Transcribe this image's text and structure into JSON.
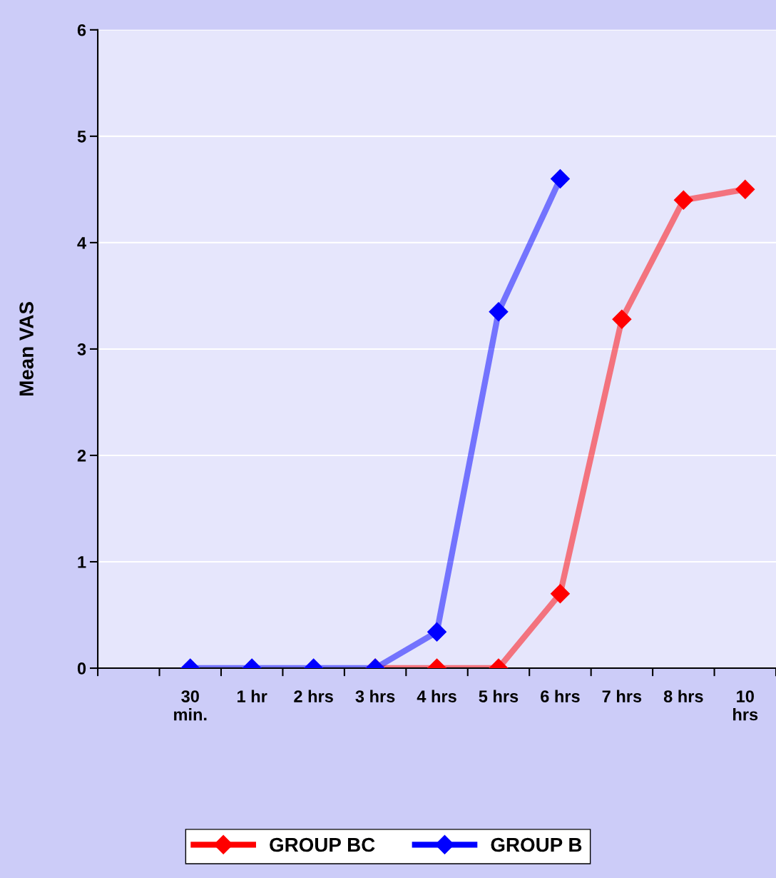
{
  "chart_data": {
    "type": "line",
    "ylabel": "Mean VAS",
    "categories": [
      null,
      "30\nmin.",
      "1 hr",
      "2 hrs",
      "3 hrs",
      "4 hrs",
      "5 hrs",
      "6 hrs",
      "7 hrs",
      "8 hrs",
      "10\nhrs"
    ],
    "series": [
      {
        "name": "GROUP BC",
        "color": "#ff0000",
        "values": [
          null,
          null,
          null,
          null,
          0,
          0,
          0,
          0.7,
          3.28,
          4.4,
          4.5
        ]
      },
      {
        "name": "GROUP B",
        "color": "#0000ff",
        "values": [
          null,
          0,
          0,
          0,
          0,
          0.34,
          3.35,
          4.6,
          null,
          null,
          null
        ]
      }
    ],
    "ylim": [
      0,
      6
    ],
    "yticks": [
      0,
      1,
      2,
      3,
      4,
      5,
      6
    ],
    "grid": "y",
    "legend": "bottom",
    "marker": "diamond",
    "line_style": "solid"
  }
}
